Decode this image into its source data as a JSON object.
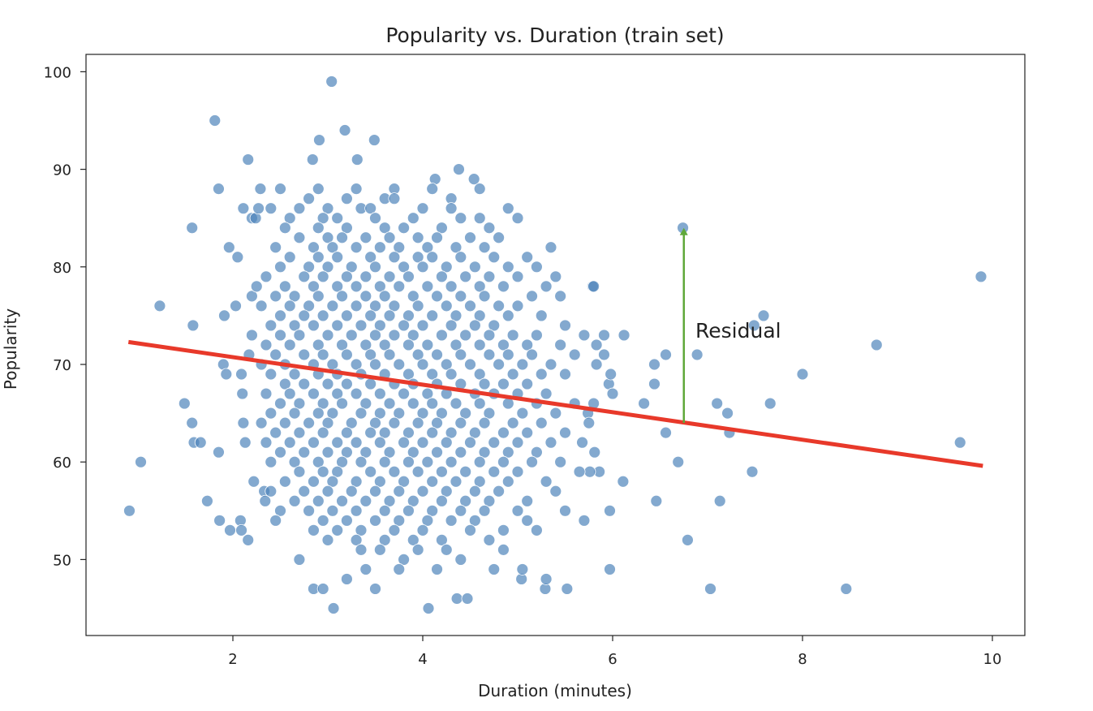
{
  "chart_data": {
    "type": "scatter",
    "title": "Popularity vs. Duration (train set)",
    "xlabel": "Duration (minutes)",
    "ylabel": "Popularity",
    "xlim": [
      0.4,
      10.3
    ],
    "ylim": [
      42,
      102.5
    ],
    "xticks": [
      2,
      4,
      6,
      8,
      10
    ],
    "yticks": [
      50,
      60,
      70,
      80,
      90,
      100
    ],
    "grid": false,
    "legend": "none",
    "colors": {
      "points": "#4f85ba",
      "point_edge": "#ffffff",
      "fit_line": "#e8392a",
      "residual_arrow": "#5fa83a"
    },
    "fit_line": {
      "x": [
        0.9,
        9.9
      ],
      "y": [
        72.3,
        59.6
      ]
    },
    "annotation": {
      "text": "Residual",
      "x": 6.75,
      "y_from": 64,
      "y_to": 84
    },
    "points": [
      [
        0.91,
        55
      ],
      [
        1.03,
        60
      ],
      [
        1.23,
        76
      ],
      [
        1.49,
        66
      ],
      [
        1.57,
        84
      ],
      [
        1.58,
        74
      ],
      [
        1.57,
        64
      ],
      [
        1.59,
        62
      ],
      [
        1.66,
        62
      ],
      [
        1.73,
        56
      ],
      [
        1.81,
        95
      ],
      [
        1.85,
        88
      ],
      [
        1.85,
        61
      ],
      [
        1.86,
        54
      ],
      [
        1.97,
        53
      ],
      [
        1.91,
        75
      ],
      [
        1.9,
        70
      ],
      [
        1.93,
        69
      ],
      [
        1.96,
        82
      ],
      [
        2.03,
        76
      ],
      [
        2.05,
        81
      ],
      [
        2.08,
        54
      ],
      [
        2.09,
        53
      ],
      [
        2.09,
        69
      ],
      [
        2.1,
        67
      ],
      [
        2.11,
        64
      ],
      [
        2.13,
        62
      ],
      [
        2.16,
        52
      ],
      [
        2.16,
        91
      ],
      [
        2.11,
        86
      ],
      [
        2.2,
        85
      ],
      [
        2.24,
        85
      ],
      [
        2.17,
        71
      ],
      [
        2.2,
        73
      ],
      [
        2.2,
        77
      ],
      [
        2.22,
        58
      ],
      [
        2.25,
        78
      ],
      [
        2.27,
        86
      ],
      [
        2.33,
        57
      ],
      [
        2.34,
        56
      ],
      [
        2.29,
        88
      ],
      [
        3.06,
        45
      ],
      [
        3.04,
        99
      ],
      [
        3.18,
        94
      ],
      [
        3.49,
        93
      ],
      [
        3.31,
        91
      ],
      [
        2.84,
        91
      ],
      [
        2.91,
        93
      ],
      [
        4.06,
        45
      ],
      [
        4.36,
        46
      ],
      [
        4.47,
        46
      ],
      [
        4.38,
        90
      ],
      [
        4.54,
        89
      ],
      [
        4.13,
        89
      ],
      [
        5.04,
        48
      ],
      [
        5.29,
        47
      ],
      [
        5.52,
        47
      ],
      [
        5.97,
        49
      ],
      [
        5.97,
        55
      ],
      [
        6.46,
        56
      ],
      [
        6.69,
        60
      ],
      [
        6.74,
        84
      ],
      [
        6.79,
        52
      ],
      [
        6.89,
        71
      ],
      [
        6.56,
        63
      ],
      [
        6.44,
        70
      ],
      [
        6.44,
        68
      ],
      [
        6.56,
        71
      ],
      [
        6.33,
        66
      ],
      [
        6.12,
        73
      ],
      [
        6.11,
        58
      ],
      [
        7.03,
        47
      ],
      [
        7.1,
        66
      ],
      [
        7.13,
        56
      ],
      [
        7.21,
        65
      ],
      [
        7.23,
        63
      ],
      [
        7.47,
        59
      ],
      [
        7.49,
        74
      ],
      [
        7.59,
        75
      ],
      [
        7.66,
        66
      ],
      [
        8.0,
        69
      ],
      [
        8.46,
        47
      ],
      [
        8.78,
        72
      ],
      [
        9.66,
        62
      ],
      [
        9.88,
        79
      ],
      [
        5.68,
        62
      ],
      [
        5.74,
        65
      ],
      [
        5.8,
        66
      ],
      [
        5.83,
        70
      ],
      [
        5.83,
        72
      ],
      [
        5.91,
        73
      ],
      [
        5.91,
        71
      ],
      [
        5.79,
        78
      ],
      [
        5.86,
        59
      ],
      [
        5.76,
        59
      ],
      [
        5.81,
        61
      ],
      [
        5.7,
        54
      ],
      [
        5.96,
        68
      ],
      [
        5.98,
        69
      ],
      [
        6.0,
        67
      ]
    ],
    "points_grouped_by_popularity": [
      {
        "y": 88,
        "x": [
          2.5,
          2.9,
          3.3,
          3.7,
          4.1,
          4.6
        ]
      },
      {
        "y": 87,
        "x": [
          2.8,
          3.2,
          3.6,
          3.7,
          4.3
        ]
      },
      {
        "y": 86,
        "x": [
          2.4,
          2.7,
          3.0,
          3.35,
          3.45,
          4.0,
          4.3,
          4.9
        ]
      },
      {
        "y": 85,
        "x": [
          2.6,
          2.95,
          3.1,
          3.5,
          3.9,
          4.4,
          4.6,
          5.0
        ]
      },
      {
        "y": 84,
        "x": [
          2.55,
          2.9,
          3.2,
          3.6,
          3.8,
          4.2,
          4.7
        ]
      },
      {
        "y": 83,
        "x": [
          2.7,
          3.0,
          3.15,
          3.4,
          3.65,
          3.95,
          4.15,
          4.5,
          4.8
        ]
      },
      {
        "y": 82,
        "x": [
          2.45,
          2.85,
          3.05,
          3.3,
          3.55,
          3.75,
          4.05,
          4.35,
          4.65,
          5.35
        ]
      },
      {
        "y": 81,
        "x": [
          2.6,
          2.9,
          3.1,
          3.45,
          3.7,
          3.95,
          4.1,
          4.4,
          4.75,
          5.1
        ]
      },
      {
        "y": 80,
        "x": [
          2.5,
          2.8,
          3.0,
          3.25,
          3.5,
          3.8,
          4.0,
          4.25,
          4.55,
          4.9,
          5.2
        ]
      },
      {
        "y": 79,
        "x": [
          2.35,
          2.75,
          2.95,
          3.2,
          3.4,
          3.65,
          3.85,
          4.2,
          4.45,
          4.7,
          5.0,
          5.4
        ]
      },
      {
        "y": 78,
        "x": [
          2.55,
          2.85,
          3.1,
          3.3,
          3.55,
          3.75,
          4.05,
          4.3,
          4.6,
          4.85,
          5.3,
          5.8
        ]
      },
      {
        "y": 77,
        "x": [
          2.45,
          2.65,
          2.9,
          3.15,
          3.4,
          3.6,
          3.9,
          4.15,
          4.4,
          4.65,
          5.15,
          5.45
        ]
      },
      {
        "y": 76,
        "x": [
          2.3,
          2.6,
          2.8,
          3.05,
          3.3,
          3.5,
          3.7,
          3.95,
          4.25,
          4.5,
          4.8,
          5.0
        ]
      },
      {
        "y": 75,
        "x": [
          2.5,
          2.75,
          2.95,
          3.2,
          3.45,
          3.65,
          3.85,
          4.1,
          4.35,
          4.6,
          4.9,
          5.25
        ]
      },
      {
        "y": 74,
        "x": [
          2.4,
          2.65,
          2.85,
          3.1,
          3.35,
          3.55,
          3.8,
          4.0,
          4.3,
          4.55,
          4.75,
          5.5
        ]
      },
      {
        "y": 73,
        "x": [
          2.5,
          2.7,
          3.0,
          3.25,
          3.5,
          3.7,
          3.9,
          4.2,
          4.45,
          4.7,
          4.95,
          5.2,
          5.7
        ]
      },
      {
        "y": 72,
        "x": [
          2.35,
          2.6,
          2.9,
          3.15,
          3.4,
          3.6,
          3.85,
          4.05,
          4.35,
          4.6,
          4.85,
          5.1,
          5.45
        ]
      },
      {
        "y": 71,
        "x": [
          2.45,
          2.75,
          2.95,
          3.2,
          3.45,
          3.65,
          3.95,
          4.15,
          4.4,
          4.7,
          4.9,
          5.15,
          5.6
        ]
      },
      {
        "y": 70,
        "x": [
          2.3,
          2.55,
          2.85,
          3.05,
          3.3,
          3.5,
          3.75,
          4.0,
          4.25,
          4.5,
          4.8,
          5.05,
          5.35
        ]
      },
      {
        "y": 69,
        "x": [
          2.4,
          2.65,
          2.9,
          3.1,
          3.35,
          3.6,
          3.85,
          4.1,
          4.3,
          4.6,
          4.95,
          5.25,
          5.5
        ]
      },
      {
        "y": 68,
        "x": [
          2.55,
          2.75,
          3.0,
          3.2,
          3.45,
          3.7,
          3.9,
          4.15,
          4.4,
          4.65,
          4.85,
          5.1
        ]
      },
      {
        "y": 67,
        "x": [
          2.35,
          2.6,
          2.85,
          3.1,
          3.3,
          3.55,
          3.8,
          4.05,
          4.25,
          4.55,
          4.75,
          5.0,
          5.3
        ]
      },
      {
        "y": 66,
        "x": [
          2.5,
          2.7,
          2.95,
          3.15,
          3.4,
          3.65,
          3.9,
          4.1,
          4.35,
          4.6,
          4.9,
          5.2,
          5.6
        ]
      },
      {
        "y": 65,
        "x": [
          2.4,
          2.65,
          2.9,
          3.05,
          3.35,
          3.55,
          3.75,
          4.0,
          4.2,
          4.45,
          4.7,
          5.05,
          5.4
        ]
      },
      {
        "y": 64,
        "x": [
          2.3,
          2.55,
          2.8,
          3.0,
          3.25,
          3.5,
          3.7,
          3.95,
          4.15,
          4.4,
          4.65,
          4.95,
          5.25,
          5.75
        ]
      },
      {
        "y": 63,
        "x": [
          2.45,
          2.7,
          2.95,
          3.2,
          3.45,
          3.6,
          3.85,
          4.1,
          4.3,
          4.55,
          4.85,
          5.1,
          5.5
        ]
      },
      {
        "y": 62,
        "x": [
          2.35,
          2.6,
          2.85,
          3.1,
          3.3,
          3.55,
          3.8,
          4.0,
          4.25,
          4.5,
          4.75,
          5.0,
          5.35
        ]
      },
      {
        "y": 61,
        "x": [
          2.5,
          2.75,
          3.0,
          3.2,
          3.4,
          3.65,
          3.9,
          4.15,
          4.4,
          4.65,
          4.9,
          5.2
        ]
      },
      {
        "y": 60,
        "x": [
          2.4,
          2.65,
          2.9,
          3.15,
          3.35,
          3.6,
          3.85,
          4.05,
          4.3,
          4.6,
          4.85,
          5.15,
          5.45
        ]
      },
      {
        "y": 59,
        "x": [
          2.7,
          2.95,
          3.1,
          3.45,
          3.7,
          3.95,
          4.2,
          4.45,
          4.75,
          5.0,
          5.65
        ]
      },
      {
        "y": 58,
        "x": [
          2.55,
          2.85,
          3.05,
          3.3,
          3.55,
          3.8,
          4.1,
          4.35,
          4.6,
          4.9,
          5.3
        ]
      },
      {
        "y": 57,
        "x": [
          2.4,
          2.75,
          3.0,
          3.25,
          3.5,
          3.75,
          4.0,
          4.25,
          4.55,
          4.8,
          5.4
        ]
      },
      {
        "y": 56,
        "x": [
          2.65,
          2.9,
          3.15,
          3.4,
          3.65,
          3.9,
          4.2,
          4.45,
          4.7,
          5.1
        ]
      },
      {
        "y": 55,
        "x": [
          2.5,
          2.8,
          3.05,
          3.3,
          3.6,
          3.85,
          4.1,
          4.4,
          4.65,
          5.0,
          5.5
        ]
      },
      {
        "y": 54,
        "x": [
          2.45,
          2.95,
          3.2,
          3.5,
          3.75,
          4.05,
          4.3,
          4.55,
          5.1
        ]
      },
      {
        "y": 53,
        "x": [
          2.85,
          3.1,
          3.35,
          3.7,
          4.0,
          4.5,
          4.85,
          5.2
        ]
      },
      {
        "y": 52,
        "x": [
          3.0,
          3.3,
          3.6,
          3.9,
          4.2,
          4.7
        ]
      },
      {
        "y": 51,
        "x": [
          3.35,
          3.55,
          3.95,
          4.25,
          4.85
        ]
      },
      {
        "y": 50,
        "x": [
          2.7,
          3.8,
          4.4
        ]
      },
      {
        "y": 49,
        "x": [
          3.4,
          3.75,
          4.15,
          4.75,
          5.05
        ]
      },
      {
        "y": 48,
        "x": [
          3.2,
          5.3
        ]
      },
      {
        "y": 47,
        "x": [
          2.85,
          2.95,
          3.5
        ]
      }
    ]
  }
}
